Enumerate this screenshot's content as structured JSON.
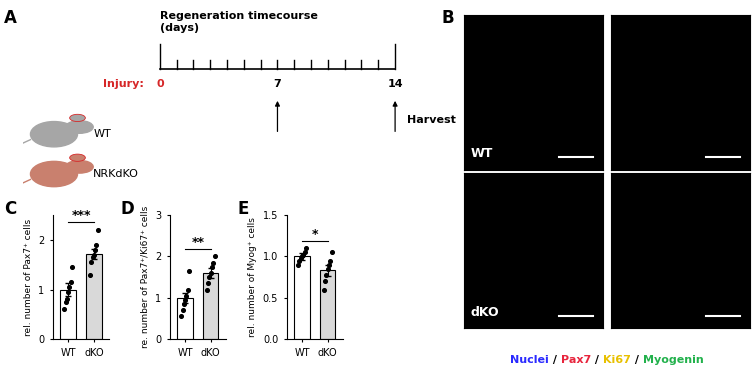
{
  "panels": {
    "A": {
      "letter": "A",
      "title": "Regeneration timecourse\n(days)",
      "injury_label": "Injury:",
      "days": [
        0,
        7,
        14
      ],
      "injury_day": 0,
      "harvest_days": [
        7,
        14
      ],
      "harvest_label": "Harvest",
      "groups": [
        {
          "name": "WT",
          "color": "#a6a6a6"
        },
        {
          "name": "NRKdKO",
          "color": "#c9806e"
        }
      ]
    },
    "B": {
      "letter": "B",
      "row_labels": [
        "WT",
        "dKO"
      ],
      "separator": " / ",
      "stain_legend": [
        {
          "name": "Nuclei",
          "color": "#2a2aff"
        },
        {
          "name": "Pax7",
          "color": "#e8243c"
        },
        {
          "name": "Ki67",
          "color": "#e8c000"
        },
        {
          "name": "Myogenin",
          "color": "#22b14c"
        }
      ]
    }
  },
  "chart_data": [
    {
      "letter": "C",
      "type": "bar",
      "categories": [
        "WT",
        "dKO"
      ],
      "values": [
        1.0,
        1.72
      ],
      "errors": [
        0.13,
        0.1
      ],
      "points": [
        [
          0.6,
          0.75,
          0.8,
          0.95,
          1.05,
          1.15,
          1.45
        ],
        [
          1.3,
          1.55,
          1.65,
          1.7,
          1.8,
          1.9,
          2.2
        ]
      ],
      "colors": [
        "#ffffff",
        "#d9d9d9"
      ],
      "ylabel": "rel. number of Pax7⁺ cells",
      "ylim": [
        0,
        2.5
      ],
      "yticks": [
        0,
        1,
        2
      ],
      "significance": "***"
    },
    {
      "letter": "D",
      "type": "bar",
      "categories": [
        "WT",
        "dKO"
      ],
      "values": [
        1.0,
        1.6
      ],
      "errors": [
        0.12,
        0.12
      ],
      "points": [
        [
          0.55,
          0.7,
          0.85,
          0.95,
          1.05,
          1.2,
          1.65
        ],
        [
          1.2,
          1.35,
          1.5,
          1.6,
          1.75,
          1.85,
          2.0
        ]
      ],
      "colors": [
        "#ffffff",
        "#d9d9d9"
      ],
      "ylabel": "re. number of Pax7⁺/Ki67⁺ cells",
      "ylim": [
        0,
        3
      ],
      "yticks": [
        0,
        1,
        2,
        3
      ],
      "significance": "**"
    },
    {
      "letter": "E",
      "type": "bar",
      "categories": [
        "WT",
        "dKO"
      ],
      "values": [
        1.0,
        0.83
      ],
      "errors": [
        0.04,
        0.07
      ],
      "points": [
        [
          0.9,
          0.95,
          0.98,
          1.0,
          1.02,
          1.05,
          1.1
        ],
        [
          0.6,
          0.7,
          0.78,
          0.85,
          0.9,
          0.95,
          1.05
        ]
      ],
      "colors": [
        "#ffffff",
        "#d9d9d9"
      ],
      "ylabel": "rel. number of Myog⁺ cells",
      "ylim": [
        0,
        1.5
      ],
      "yticks": [
        {
          "value": 0,
          "label": "0.0"
        },
        {
          "value": 0.5,
          "label": "0.5"
        },
        {
          "value": 1,
          "label": "1.0"
        },
        {
          "value": 1.5,
          "label": "1.5"
        }
      ],
      "significance": "*"
    }
  ]
}
